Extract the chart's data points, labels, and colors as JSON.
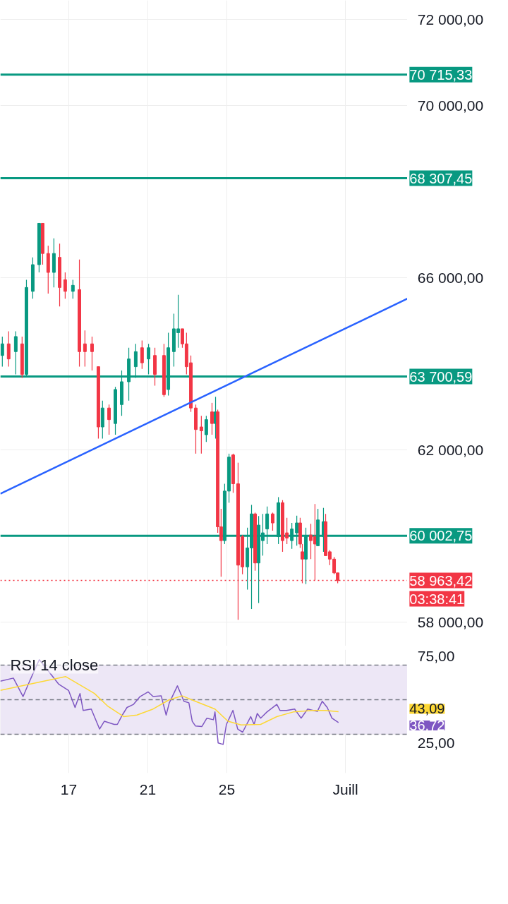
{
  "chart_data": [
    {
      "type": "candlestick",
      "xlim": [
        13.54,
        34.14
      ],
      "ylim": [
        57440,
        72440
      ],
      "xticks": [
        {
          "value": 17,
          "label": null
        },
        {
          "value": 21,
          "label": null
        },
        {
          "value": 25,
          "label": null
        },
        {
          "value": 31,
          "label": null
        }
      ],
      "yticks": [
        {
          "value": 58000,
          "label": "58 000,00"
        },
        {
          "value": 62000,
          "label": "62 000,00"
        },
        {
          "value": 66000,
          "label": "66 000,00"
        },
        {
          "value": 70000,
          "label": "70 000,00"
        },
        {
          "value": 72000,
          "label": "72 000,00"
        }
      ],
      "grid": true,
      "tick_labels": "y",
      "x": [
        13.64,
        13.96,
        14.32,
        14.64,
        14.86,
        15.18,
        15.5,
        15.68,
        15.96,
        16.25,
        16.54,
        16.82,
        17.21,
        17.54,
        17.82,
        18.18,
        18.5,
        18.71,
        19.04,
        19.36,
        19.68,
        20.04,
        20.39,
        20.71,
        21.04,
        21.36,
        21.82,
        22.04,
        22.32,
        22.54,
        22.75,
        22.96,
        23.18,
        23.43,
        23.71,
        23.96,
        24.25,
        24.43,
        24.54,
        24.71,
        24.89,
        25.11,
        25.32,
        25.57,
        25.79,
        26.04,
        26.25,
        26.43,
        26.61,
        26.82,
        27.04,
        27.32,
        27.61,
        27.82,
        28.04,
        28.29,
        28.54,
        28.71,
        28.82,
        29.0,
        29.25,
        29.46,
        29.61,
        29.89,
        30.0,
        30.21,
        30.43,
        30.61
      ],
      "ohlc": [
        [
          64190,
          64630,
          63930,
          64460
        ],
        [
          64460,
          64750,
          63930,
          64110
        ],
        [
          64280,
          64750,
          63750,
          64630
        ],
        [
          64460,
          64630,
          63670,
          63750
        ],
        [
          63750,
          65950,
          63720,
          65770
        ],
        [
          65680,
          66470,
          65510,
          66300
        ],
        [
          66300,
          67260,
          66120,
          67260
        ],
        [
          67260,
          67260,
          66300,
          66560
        ],
        [
          66560,
          66740,
          65630,
          66120
        ],
        [
          66120,
          66910,
          65770,
          66560
        ],
        [
          66470,
          66790,
          65330,
          65770
        ],
        [
          65950,
          66120,
          65510,
          65680
        ],
        [
          65680,
          65950,
          65510,
          65820
        ],
        [
          65720,
          66420,
          63930,
          64280
        ],
        [
          64460,
          64770,
          63930,
          64280
        ],
        [
          64460,
          64630,
          63840,
          64280
        ],
        [
          63930,
          63930,
          62260,
          62530
        ],
        [
          62530,
          63140,
          62260,
          62970
        ],
        [
          62970,
          63050,
          62350,
          62700
        ],
        [
          62610,
          63460,
          62350,
          63400
        ],
        [
          63050,
          63840,
          62790,
          63580
        ],
        [
          63580,
          64370,
          63140,
          64110
        ],
        [
          63930,
          64460,
          63670,
          64280
        ],
        [
          64370,
          64540,
          63880,
          64020
        ],
        [
          64110,
          64460,
          63750,
          64370
        ],
        [
          64190,
          64370,
          63490,
          63750
        ],
        [
          64190,
          64460,
          63230,
          63280
        ],
        [
          63400,
          64720,
          63260,
          64370
        ],
        [
          64280,
          65160,
          63930,
          64810
        ],
        [
          64720,
          65600,
          64370,
          64810
        ],
        [
          64810,
          64810,
          64370,
          64460
        ],
        [
          64460,
          64720,
          63750,
          63930
        ],
        [
          64020,
          64190,
          62880,
          62970
        ],
        [
          62970,
          63050,
          61910,
          62470
        ],
        [
          62530,
          62790,
          61910,
          62440
        ],
        [
          62350,
          62790,
          62180,
          62700
        ],
        [
          62880,
          63090,
          62350,
          62610
        ],
        [
          62610,
          63230,
          62260,
          62880
        ],
        [
          62880,
          62930,
          60070,
          60210
        ],
        [
          60210,
          60630,
          59050,
          59890
        ],
        [
          59890,
          61210,
          59810,
          61040
        ],
        [
          61040,
          61910,
          60770,
          61830
        ],
        [
          61880,
          61910,
          61000,
          61210
        ],
        [
          61210,
          61700,
          58050,
          59320
        ],
        [
          59980,
          60020,
          59110,
          59280
        ],
        [
          59280,
          60190,
          58750,
          59720
        ],
        [
          59720,
          60720,
          58300,
          60510
        ],
        [
          60510,
          60540,
          59190,
          59370
        ],
        [
          59370,
          60460,
          58440,
          60250
        ],
        [
          59890,
          60510,
          59540,
          60070
        ],
        [
          60160,
          60680,
          59810,
          60510
        ],
        [
          60510,
          60540,
          60120,
          60300
        ],
        [
          59980,
          60900,
          59810,
          60770
        ],
        [
          60770,
          60830,
          59630,
          59890
        ],
        [
          60070,
          60420,
          59810,
          59950
        ],
        [
          59890,
          60300,
          59700,
          60160
        ],
        [
          60070,
          60470,
          59770,
          60300
        ],
        [
          60300,
          60420,
          59720,
          59810
        ],
        [
          59630,
          59810,
          58900,
          59460
        ],
        [
          59460,
          60190,
          58880,
          59980
        ],
        [
          60020,
          60280,
          59460,
          59890
        ],
        [
          59980,
          60740,
          58970,
          59810
        ],
        [
          59770,
          60630,
          59770,
          60370
        ],
        [
          59980,
          60650,
          59630,
          60330
        ],
        [
          60330,
          60510,
          59540,
          59540
        ],
        [
          59630,
          59670,
          59320,
          59460
        ],
        [
          59460,
          59510,
          59110,
          59140
        ],
        [
          59140,
          59140,
          58900,
          58960
        ]
      ],
      "colors": [
        "#089981",
        "#f23645",
        "#089981",
        "#f23645",
        "#089981",
        "#089981",
        "#089981",
        "#f23645",
        "#f23645",
        "#089981",
        "#f23645",
        "#f23645",
        "#089981",
        "#f23645",
        "#f23645",
        "#f23645",
        "#f23645",
        "#089981",
        "#f23645",
        "#089981",
        "#089981",
        "#089981",
        "#089981",
        "#f23645",
        "#089981",
        "#f23645",
        "#f23645",
        "#089981",
        "#089981",
        "#089981",
        "#f23645",
        "#f23645",
        "#f23645",
        "#f23645",
        "#f23645",
        "#089981",
        "#f23645",
        "#089981",
        "#f23645",
        "#f23645",
        "#089981",
        "#089981",
        "#f23645",
        "#f23645",
        "#f23645",
        "#089981",
        "#089981",
        "#f23645",
        "#089981",
        "#089981",
        "#089981",
        "#f23645",
        "#089981",
        "#f23645",
        "#f23645",
        "#089981",
        "#089981",
        "#f23645",
        "#f23645",
        "#089981",
        "#f23645",
        "#f23645",
        "#089981",
        "#089981",
        "#f23645",
        "#f23645",
        "#f23645",
        "#f23645"
      ],
      "series": [
        {
          "type": "line",
          "color": "#2962ff",
          "x": [
            13.54,
            34.14
          ],
          "values": [
            60980,
            65510
          ]
        }
      ],
      "ref_lines": [
        {
          "axis": "y",
          "value": 70715.33,
          "label": "70 715,33",
          "color": "#089981",
          "line_style": "solid"
        },
        {
          "axis": "y",
          "value": 68307.45,
          "label": "68 307,45",
          "color": "#089981",
          "line_style": "solid"
        },
        {
          "axis": "y",
          "value": 63700.59,
          "label": "63 700,59",
          "color": "#089981",
          "line_style": "solid"
        },
        {
          "axis": "y",
          "value": 60002.75,
          "label": "60 002,75",
          "color": "#089981",
          "line_style": "solid"
        },
        {
          "axis": "y",
          "value": 58963.42,
          "label": "58 963,42",
          "color": "#f23645",
          "line_style": "dotted"
        }
      ],
      "annotations": [
        "03:38:41"
      ]
    },
    {
      "type": "line",
      "title": "RSI 14 close",
      "xlim": [
        13.54,
        34.14
      ],
      "ylim": [
        7.5,
        79
      ],
      "xticks": [
        {
          "value": 17,
          "label": "17"
        },
        {
          "value": 21,
          "label": "21"
        },
        {
          "value": 25,
          "label": "25"
        },
        {
          "value": 31,
          "label": "Juill"
        }
      ],
      "yticks": [
        {
          "value": 25,
          "label": "25,00"
        },
        {
          "value": 75,
          "label": "75,00"
        }
      ],
      "grid": "x",
      "series": [
        {
          "color": "#7e57c2",
          "x": [
            13.54,
            14.2,
            14.69,
            15.02,
            15.51,
            16.0,
            16.5,
            16.99,
            17.32,
            17.57,
            17.73,
            18.14,
            18.56,
            18.8,
            19.3,
            19.46,
            19.71,
            19.95,
            20.28,
            20.61,
            21.02,
            21.27,
            21.68,
            21.93,
            22.09,
            22.5,
            22.83,
            23.08,
            23.25,
            23.41,
            23.74,
            23.99,
            24.32,
            24.4,
            24.56,
            24.81,
            24.98,
            25.31,
            25.55,
            25.8,
            26.21,
            26.38,
            26.54,
            26.71,
            27.03,
            27.53,
            27.69,
            28.02,
            28.43,
            28.76,
            29.09,
            29.58,
            29.83,
            30.08,
            30.32,
            30.65
          ],
          "values": [
            60.7,
            62.5,
            51.8,
            60.7,
            73.2,
            66.1,
            58.9,
            55.4,
            45.5,
            53.6,
            43.8,
            44.6,
            33.0,
            37.5,
            35.7,
            35.7,
            41.1,
            45.5,
            47.3,
            51.8,
            54.5,
            51.8,
            52.2,
            41.1,
            48.2,
            58.0,
            49.1,
            48.2,
            37.5,
            34.8,
            34.5,
            39.3,
            38.4,
            42.9,
            25.0,
            24.1,
            35.7,
            43.8,
            33.0,
            31.2,
            40.2,
            35.7,
            42.0,
            39.3,
            42.9,
            47.3,
            43.8,
            43.8,
            44.6,
            39.3,
            44.6,
            43.2,
            49.1,
            45.5,
            39.3,
            36.72
          ],
          "value_labels": [
            null,
            null,
            null,
            null,
            null,
            null,
            null,
            null,
            null,
            null,
            null,
            null,
            null,
            null,
            null,
            null,
            null,
            null,
            null,
            null,
            null,
            null,
            null,
            null,
            null,
            null,
            null,
            null,
            null,
            null,
            null,
            null,
            null,
            null,
            null,
            null,
            null,
            null,
            null,
            null,
            null,
            null,
            null,
            null,
            null,
            null,
            null,
            null,
            null,
            null,
            null,
            null,
            null,
            null,
            null,
            null
          ]
        },
        {
          "color": "#fdd835",
          "x": [
            13.54,
            16.84,
            18.3,
            18.96,
            19.78,
            20.45,
            21.27,
            22.09,
            22.75,
            23.41,
            24.4,
            25.06,
            25.72,
            26.71,
            27.53,
            28.36,
            29.34,
            30.0,
            30.65
          ],
          "values": [
            55.4,
            63.4,
            53.6,
            46.4,
            40.2,
            41.1,
            44.6,
            50.0,
            52.2,
            49.1,
            44.6,
            37.5,
            35.4,
            35.7,
            40.2,
            42.9,
            43.8,
            43.8,
            43.09
          ],
          "value_labels": [
            null,
            null,
            null,
            null,
            null,
            null,
            null,
            null,
            null,
            null,
            null,
            null,
            null,
            null,
            null,
            null,
            null,
            null,
            null
          ]
        }
      ],
      "ref_lines": [
        {
          "axis": "y",
          "value": 70,
          "color": "#787b86",
          "line_style": "dashed"
        },
        {
          "axis": "y",
          "value": 50,
          "color": "#787b86",
          "line_style": "dashed"
        },
        {
          "axis": "y",
          "value": 30,
          "color": "#787b86",
          "line_style": "dashed"
        }
      ],
      "bands": [
        {
          "axis": "y",
          "from": 30,
          "to": 70,
          "color": "#ede7f6"
        }
      ],
      "annotations": [
        "43,09",
        "36,72"
      ]
    }
  ]
}
